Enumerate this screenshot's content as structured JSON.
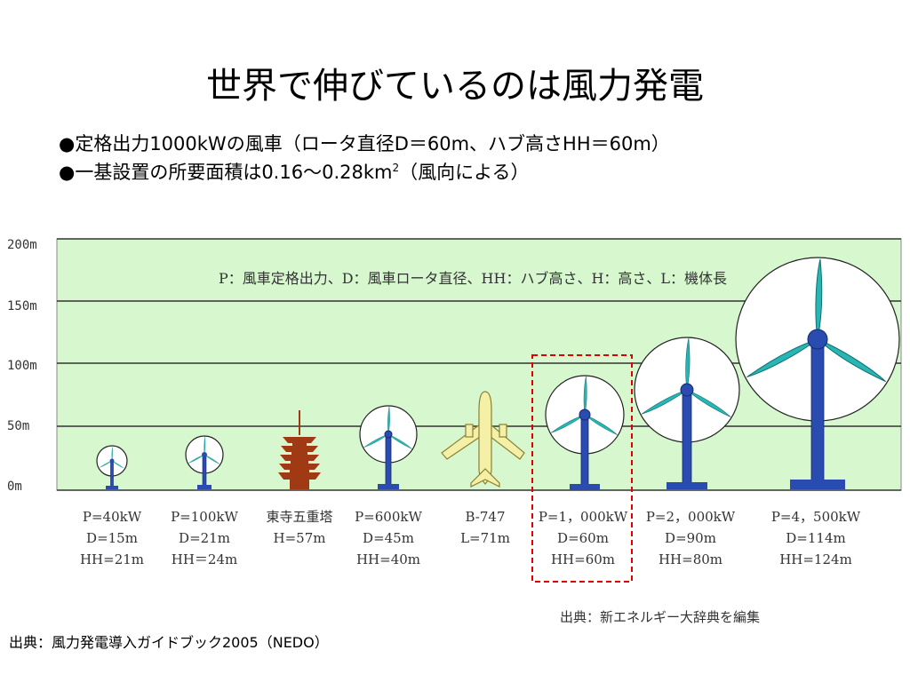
{
  "title": "世界で伸びているのは風力発電",
  "bullets": {
    "b1": "●定格出力1000kWの風車（ロータ直径D＝60m、ハブ高さHH＝60m）",
    "b2_main": "●一基設置の所要面積は0.16～0.28km",
    "b2_sup": "2",
    "b2_tail": "（風向による）"
  },
  "axis_labels": [
    "200m",
    "150m",
    "100m",
    "50m",
    "0m"
  ],
  "legend": "P：風車定格出力、D：風車ロータ直径、HH：ハブ高さ、H：高さ、L：機体長",
  "items": [
    {
      "l1": "P=40kW",
      "l2": "D=15m",
      "l3": "HH=21m"
    },
    {
      "l1": "P=100kW",
      "l2": "D=21m",
      "l3": "HH＝24m"
    },
    {
      "l1": "東寺五重塔",
      "l2": "H=57m",
      "l3": ""
    },
    {
      "l1": "P=600kW",
      "l2": "D=45m",
      "l3": "HH=40m"
    },
    {
      "l1": "B-747",
      "l2": "L=71m",
      "l3": ""
    },
    {
      "l1": "P=1，000kW",
      "l2": "D=60m",
      "l3": "HH=60m"
    },
    {
      "l1": "P=2，000kW",
      "l2": "D=90m",
      "l3": "HH=80m"
    },
    {
      "l1": "P=4，500kW",
      "l2": "D=114m",
      "l3": "HH=124m"
    }
  ],
  "credit": "出典：新エネルギー大辞典を編集",
  "source": "出典：風力発電導入ガイドブック2005（NEDO）",
  "colors": {
    "panel": "#d7f7cf",
    "tower": "#2a4bb0",
    "blade": "#2ab5b5",
    "pagoda": "#a03a14",
    "highlight": "#e00000"
  }
}
